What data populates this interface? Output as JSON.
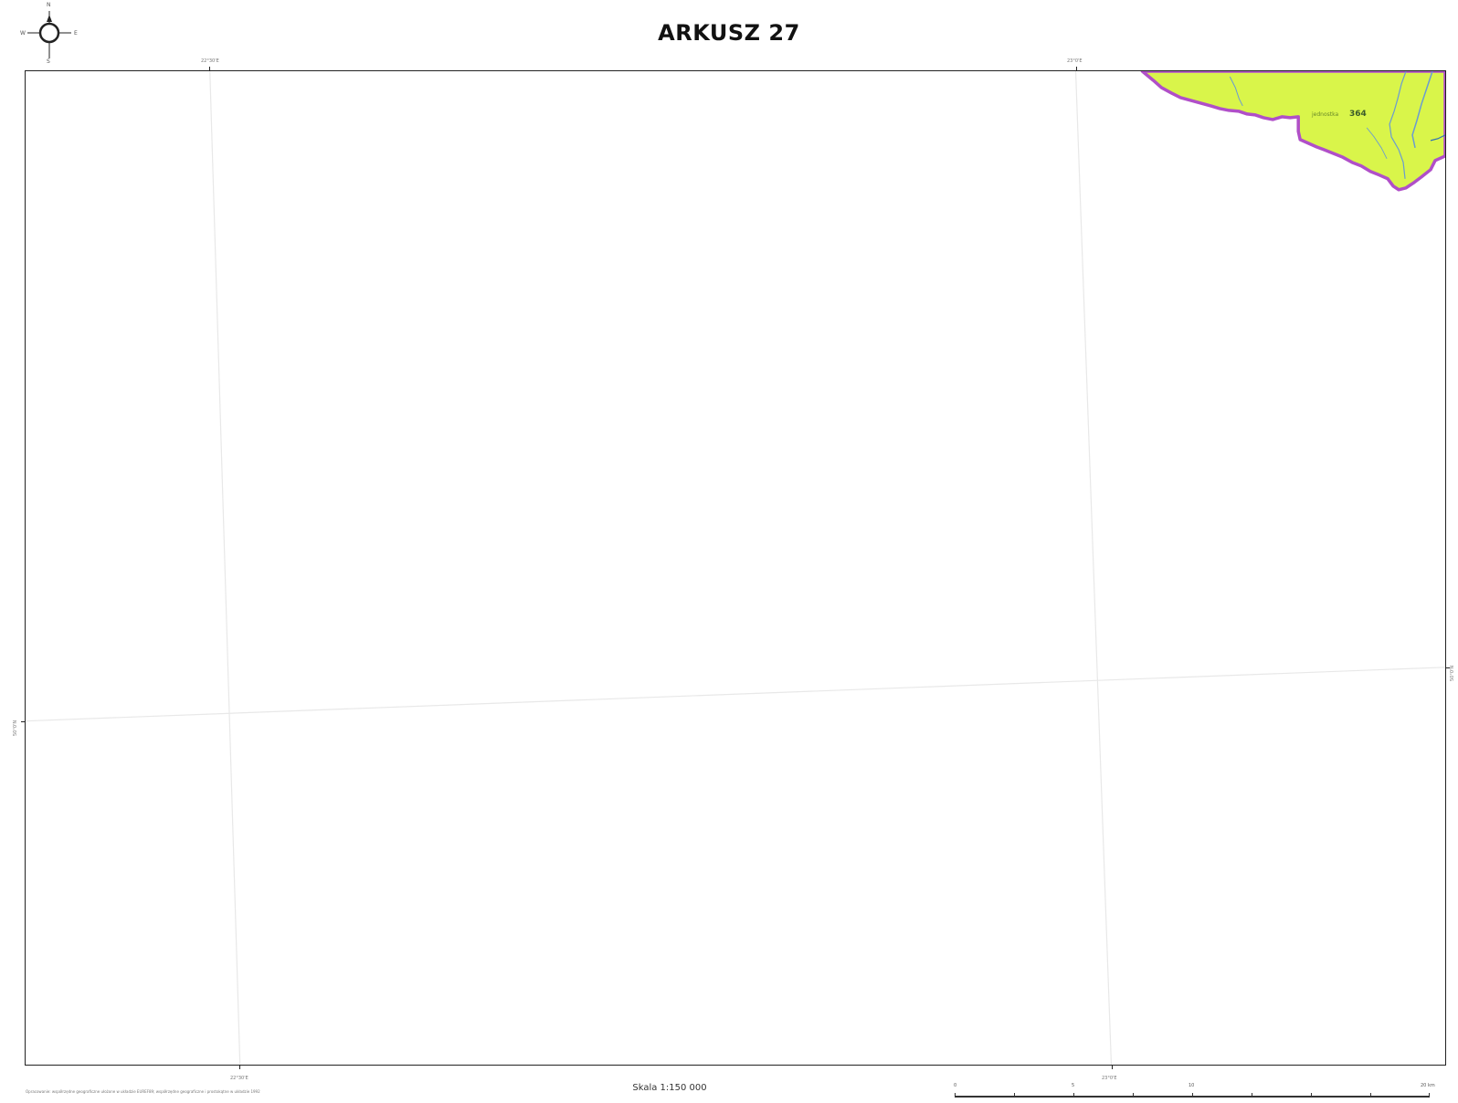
{
  "title": "ARKUSZ 27",
  "compass": {
    "icon": "north-arrow-icon",
    "letters": {
      "n": "N",
      "e": "E",
      "s": "S",
      "w": "W"
    }
  },
  "map": {
    "colors": {
      "frame": "#222222",
      "graticule": "#e8e8e8",
      "area_fill": "#d9f54a",
      "area_border": "#b04fc8",
      "water": "#6a9bd1"
    },
    "area_label": {
      "prefix": "jednostka",
      "number": "364"
    }
  },
  "coordinates": {
    "top": [
      "22°30'E",
      "23°0'E"
    ],
    "bottom": [
      "22°30'E",
      "23°0'E"
    ],
    "left": [
      "50°0'N"
    ],
    "right": [
      "50°0'N"
    ]
  },
  "footer": {
    "note": "Opracowanie: współrzędne geograficzne ułożone w układzie EUREF89; współrzędne geograficzne i prostokątne w układzie 1992",
    "scale": "Skala 1:150 000"
  },
  "scalebar": {
    "labels": [
      "0",
      "5",
      "10",
      "20 km"
    ]
  }
}
